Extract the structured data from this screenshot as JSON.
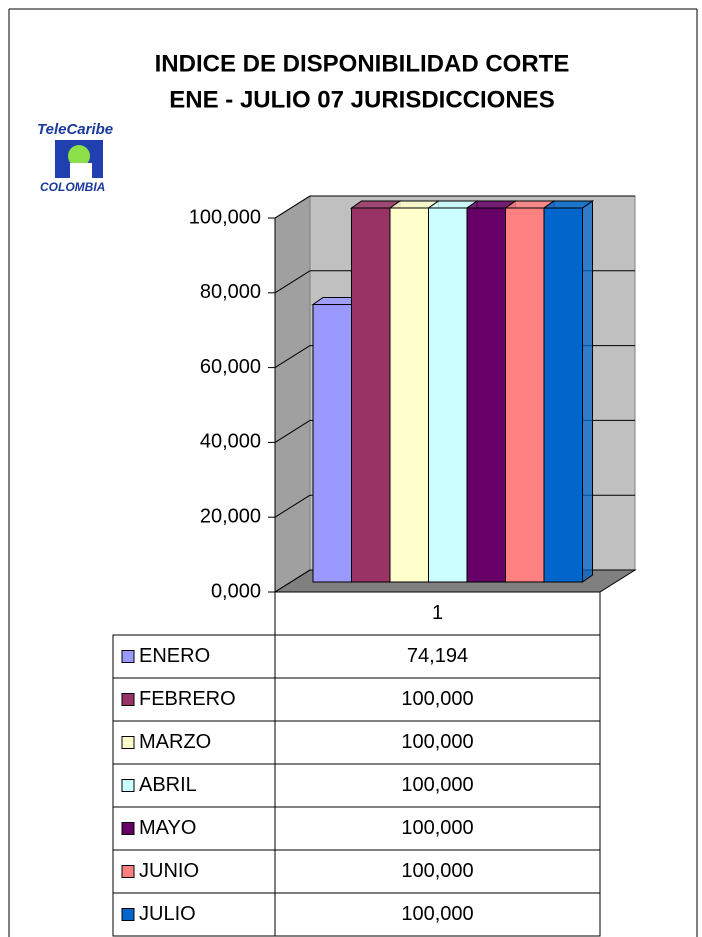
{
  "chart_data": {
    "type": "bar3d",
    "title": [
      "INDICE DE DISPONIBILIDAD CORTE",
      "ENE - JULIO 07 JURISDICCIONES"
    ],
    "logo": {
      "top": "TeleCaribe",
      "bottom": "COLOMBIA"
    },
    "categories": [
      "1"
    ],
    "series": [
      {
        "name": "ENERO",
        "color": "#9999ff",
        "values": [
          74.194
        ],
        "value_labels": [
          "74,194"
        ]
      },
      {
        "name": "FEBRERO",
        "color": "#993366",
        "values": [
          100
        ],
        "value_labels": [
          "100,000"
        ]
      },
      {
        "name": "MARZO",
        "color": "#ffffcc",
        "values": [
          100
        ],
        "value_labels": [
          "100,000"
        ]
      },
      {
        "name": "ABRIL",
        "color": "#ccffff",
        "values": [
          100
        ],
        "value_labels": [
          "100,000"
        ]
      },
      {
        "name": "MAYO",
        "color": "#660066",
        "values": [
          100
        ],
        "value_labels": [
          "100,000"
        ]
      },
      {
        "name": "JUNIO",
        "color": "#ff8080",
        "values": [
          100
        ],
        "value_labels": [
          "100,000"
        ]
      },
      {
        "name": "JULIO",
        "color": "#0066cc",
        "values": [
          100
        ],
        "value_labels": [
          "100,000"
        ]
      }
    ],
    "ylim": [
      0,
      100
    ],
    "yticks": [
      {
        "value": 0,
        "label": "0,000"
      },
      {
        "value": 20,
        "label": "20,000"
      },
      {
        "value": 40,
        "label": "40,000"
      },
      {
        "value": 60,
        "label": "60,000"
      },
      {
        "value": 80,
        "label": "80,000"
      },
      {
        "value": 100,
        "label": "100,000"
      }
    ],
    "grid": true
  }
}
